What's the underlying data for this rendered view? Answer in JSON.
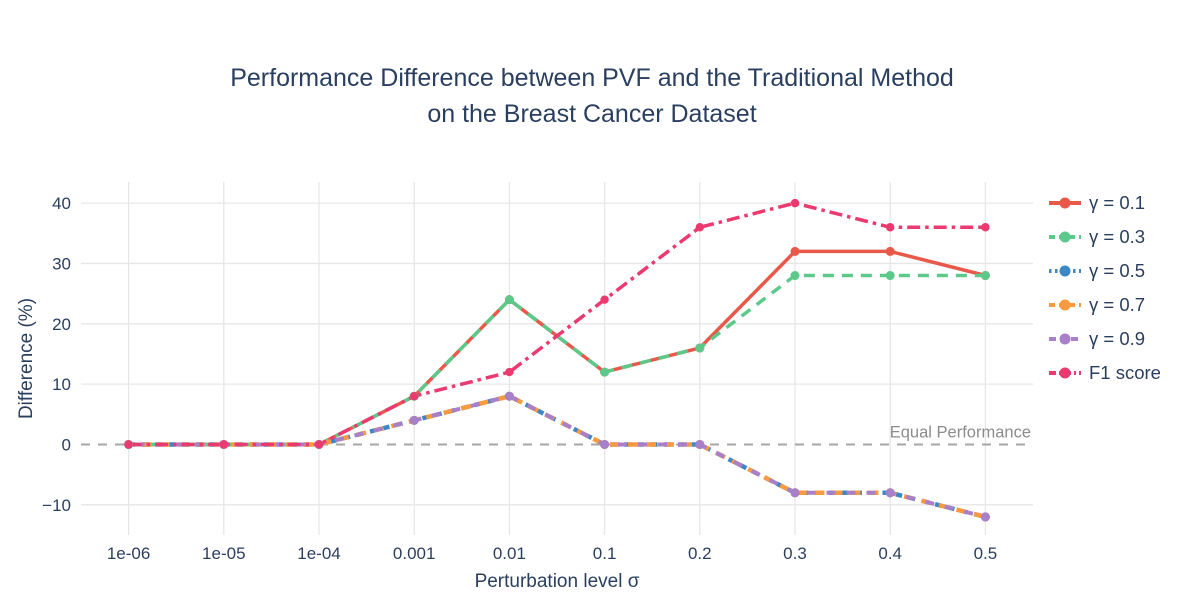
{
  "title": {
    "line1": "Performance Difference between PVF and the Traditional Method",
    "line2": "on the Breast Cancer Dataset"
  },
  "annotation": {
    "text": "Equal Performance",
    "color": "#8c8c8c"
  },
  "colors": {
    "title_text": "#2a3f5f",
    "tick_text": "#2a3f5f",
    "grid": "#e7e7e7",
    "zero_line": "#a6a6a6",
    "background": "#ffffff"
  },
  "chart_data": {
    "type": "line",
    "title": "Performance Difference between PVF and the Traditional Method on the Breast Cancer Dataset",
    "xlabel": "Perturbation level σ",
    "ylabel": "Difference (%)",
    "categories": [
      "1e-06",
      "1e-05",
      "1e-04",
      "0.001",
      "0.01",
      "0.1",
      "0.2",
      "0.3",
      "0.4",
      "0.5"
    ],
    "x_axis_type": "categorical",
    "yticks": [
      40,
      30,
      20,
      10,
      0,
      -10
    ],
    "ytick_labels": [
      "40",
      "30",
      "20",
      "10",
      "0",
      "−10"
    ],
    "ylim": [
      -15,
      43.5
    ],
    "grid": true,
    "legend_position": "right",
    "zero_line": {
      "value": 0,
      "style": "dashed",
      "label": "Equal Performance"
    },
    "series": [
      {
        "name": "γ = 0.1",
        "color": "#e8594a",
        "dash": "solid",
        "values": [
          0,
          0,
          0,
          8,
          24,
          12,
          16,
          32,
          32,
          28
        ]
      },
      {
        "name": "γ = 0.3",
        "color": "#5cc98a",
        "dash": "dash",
        "values": [
          0,
          0,
          0,
          8,
          24,
          12,
          16,
          28,
          28,
          28
        ]
      },
      {
        "name": "γ = 0.5",
        "color": "#3c87c4",
        "dash": "dot",
        "values": [
          0,
          0,
          0,
          4,
          8,
          0,
          0,
          -8,
          -8,
          -12
        ]
      },
      {
        "name": "γ = 0.7",
        "color": "#f89a3d",
        "dash": "dash2",
        "values": [
          0,
          0,
          0,
          4,
          8,
          0,
          0,
          -8,
          -8,
          -12
        ]
      },
      {
        "name": "γ = 0.9",
        "color": "#a87fc9",
        "dash": "longdash",
        "values": [
          0,
          0,
          0,
          4,
          8,
          0,
          0,
          -8,
          -8,
          -12
        ]
      },
      {
        "name": "F1 score",
        "color": "#ea3a6f",
        "dash": "dashdot",
        "values": [
          0,
          0,
          0,
          8,
          12,
          24,
          36,
          40,
          36,
          36
        ]
      }
    ]
  }
}
